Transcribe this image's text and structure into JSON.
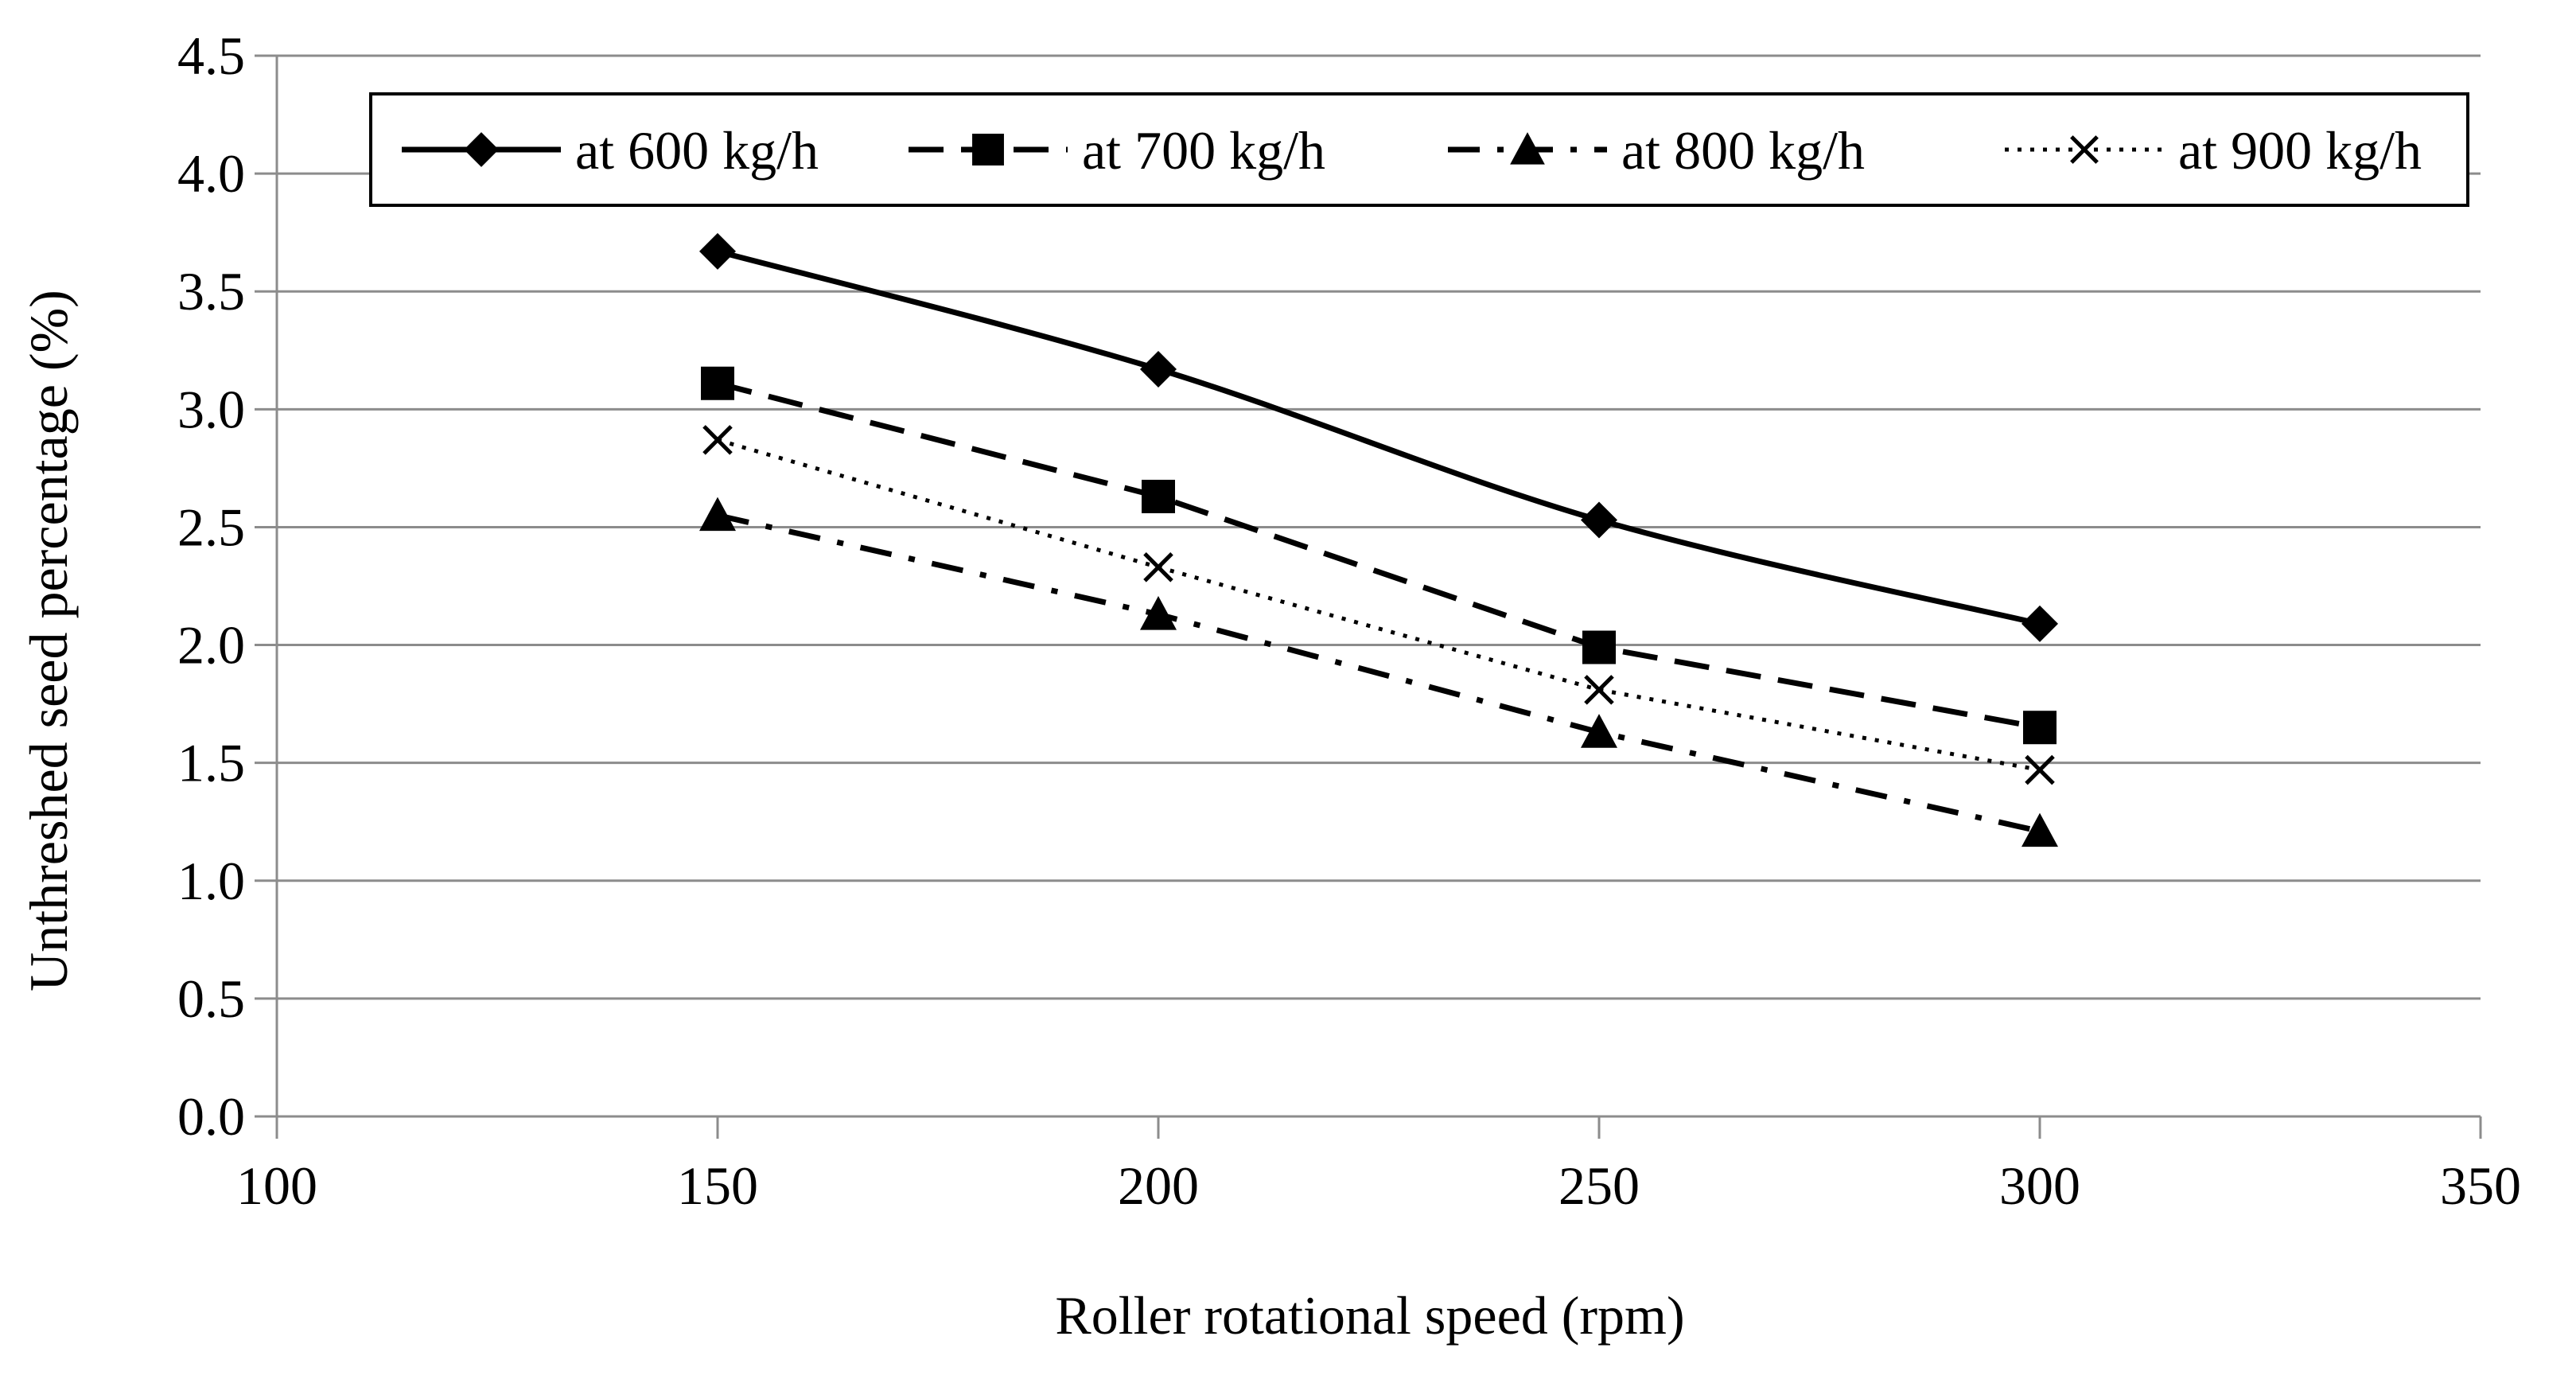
{
  "chart_data": {
    "type": "line",
    "title": "",
    "xlabel": "Roller rotational speed (rpm)",
    "ylabel": "Unthreshed seed percentage (%)",
    "xlim": [
      100,
      350
    ],
    "ylim": [
      0.0,
      4.5
    ],
    "x_ticks": [
      "100",
      "150",
      "200",
      "250",
      "300",
      "350"
    ],
    "y_ticks": [
      "0.0",
      "0.5",
      "1.0",
      "1.5",
      "2.0",
      "2.5",
      "3.0",
      "3.5",
      "4.0",
      "4.5"
    ],
    "grid": "horizontal",
    "legend_position": "top-right",
    "x": [
      150,
      200,
      250,
      300
    ],
    "series": [
      {
        "name": "at 600 kg/h",
        "values": [
          3.67,
          3.17,
          2.53,
          2.09
        ],
        "marker": "diamond",
        "line_style": "solid",
        "color": "#000000"
      },
      {
        "name": "at 700 kg/h",
        "values": [
          3.11,
          2.63,
          1.99,
          1.65
        ],
        "marker": "square",
        "line_style": "dashed",
        "color": "#000000"
      },
      {
        "name": "at 800 kg/h",
        "values": [
          2.55,
          2.13,
          1.63,
          1.21
        ],
        "marker": "triangle",
        "line_style": "dash-dot",
        "color": "#000000"
      },
      {
        "name": "at 900 kg/h",
        "values": [
          2.87,
          2.33,
          1.81,
          1.47
        ],
        "marker": "x",
        "line_style": "dotted",
        "color": "#000000"
      }
    ]
  }
}
